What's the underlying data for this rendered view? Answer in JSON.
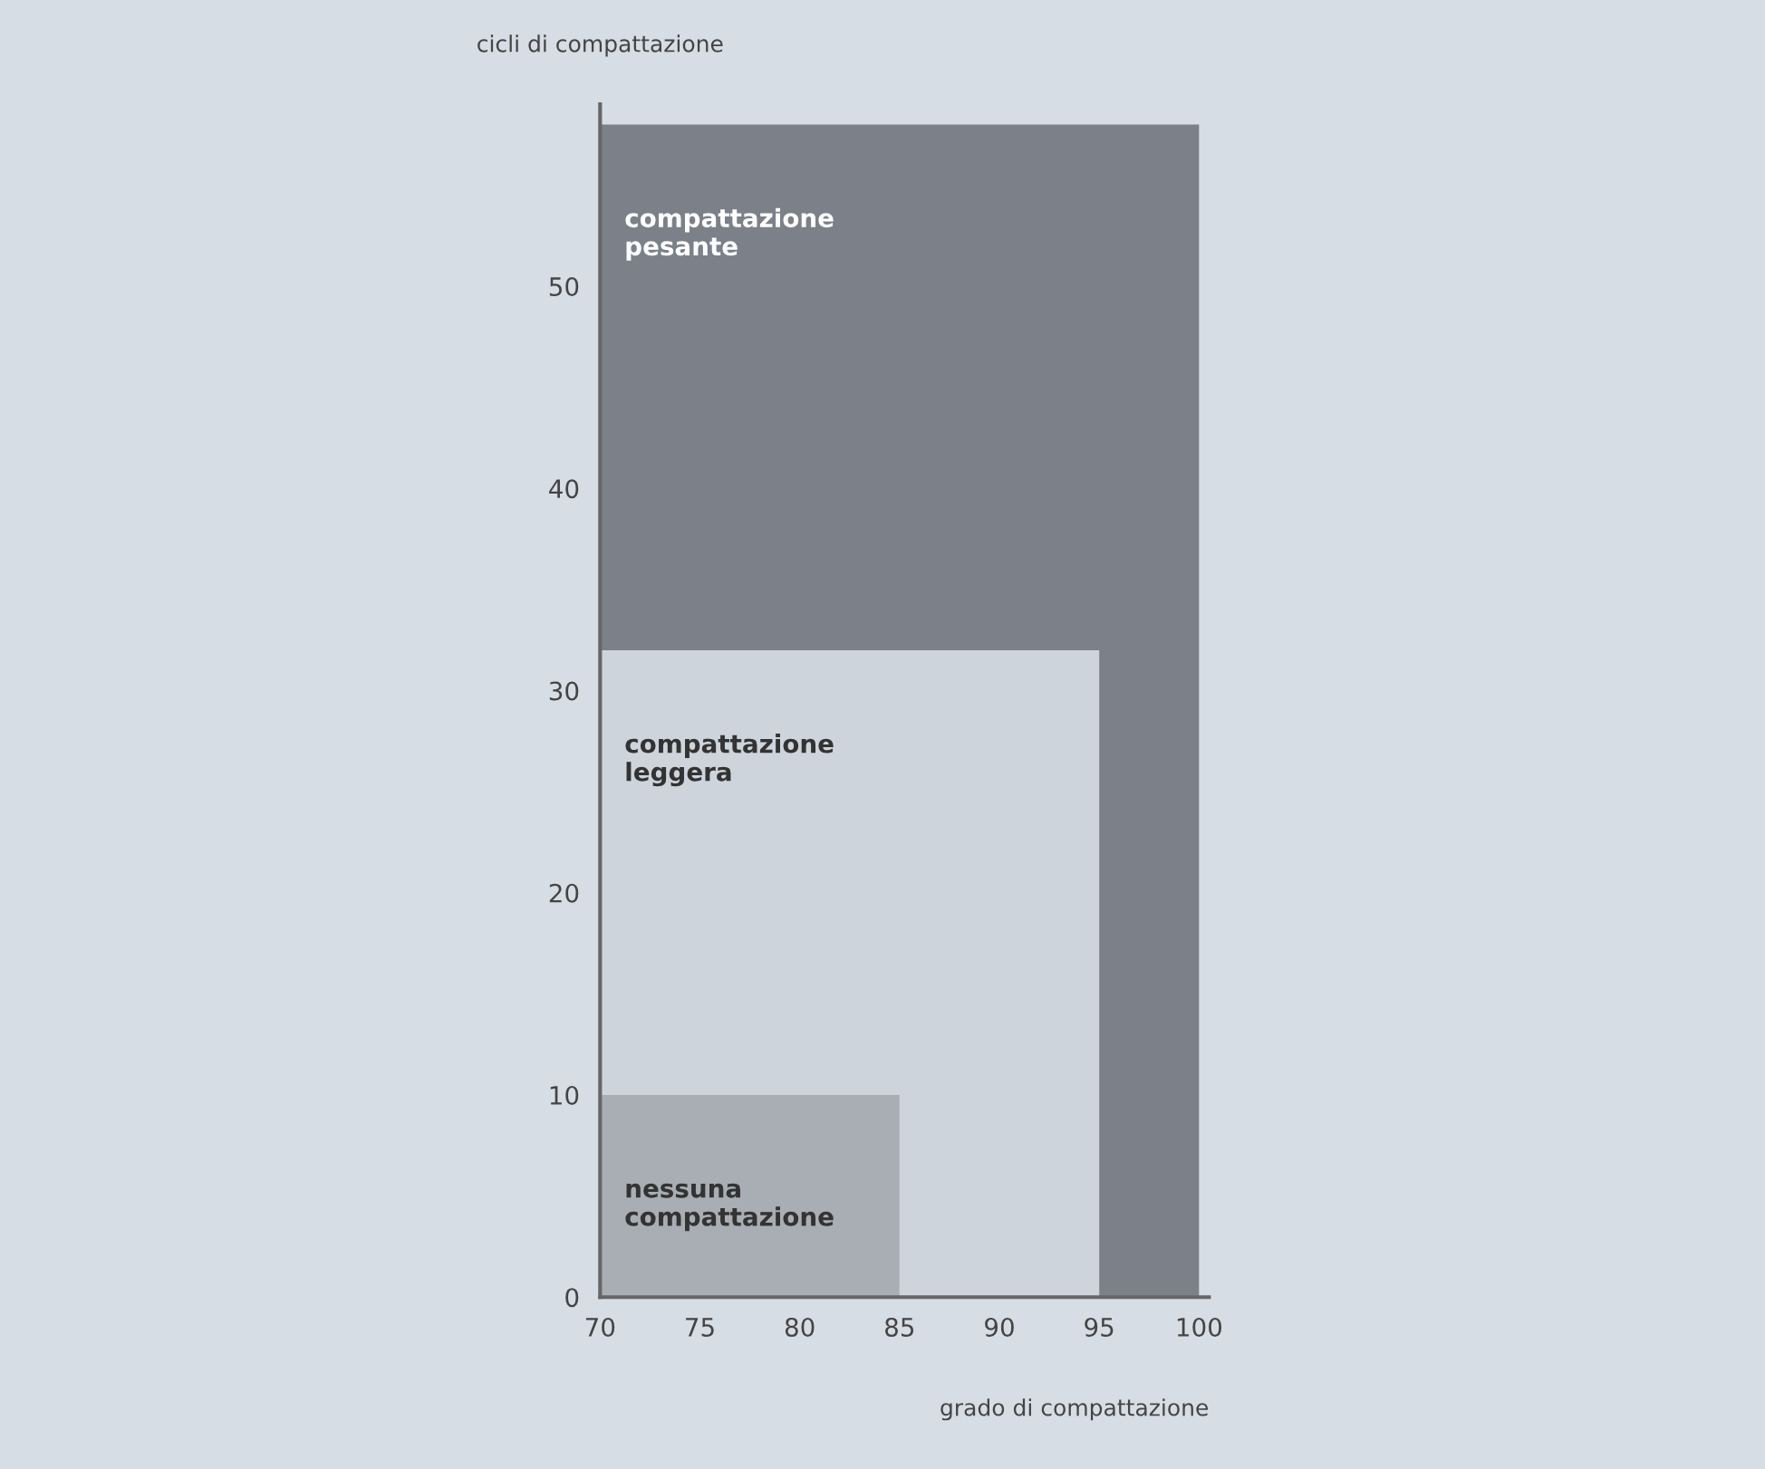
{
  "chart_data": {
    "type": "area",
    "stacked": true,
    "xlabel": "grado di compattazione",
    "ylabel": "cicli di compattazione",
    "x": [
      70,
      85,
      85,
      95,
      95,
      100
    ],
    "series": [
      {
        "name": "nessuna compattazione",
        "color": "#a9aeb4",
        "values": [
          10,
          10,
          0,
          0,
          0,
          0
        ]
      },
      {
        "name": "compattazione leggera",
        "color": "#cdd4dc",
        "values": [
          22,
          22,
          32,
          32,
          0,
          0
        ]
      },
      {
        "name": "compattazione pesante",
        "color": "#7c8189",
        "values": [
          26,
          26,
          26,
          26,
          58,
          58
        ]
      }
    ],
    "xlim": [
      70,
      100.5
    ],
    "ylim": [
      0,
      59
    ],
    "xticks": [
      70,
      75,
      80,
      85,
      90,
      95,
      100
    ],
    "yticks": [
      0,
      10,
      20,
      30,
      40,
      50
    ],
    "grid": false,
    "legend": false
  }
}
